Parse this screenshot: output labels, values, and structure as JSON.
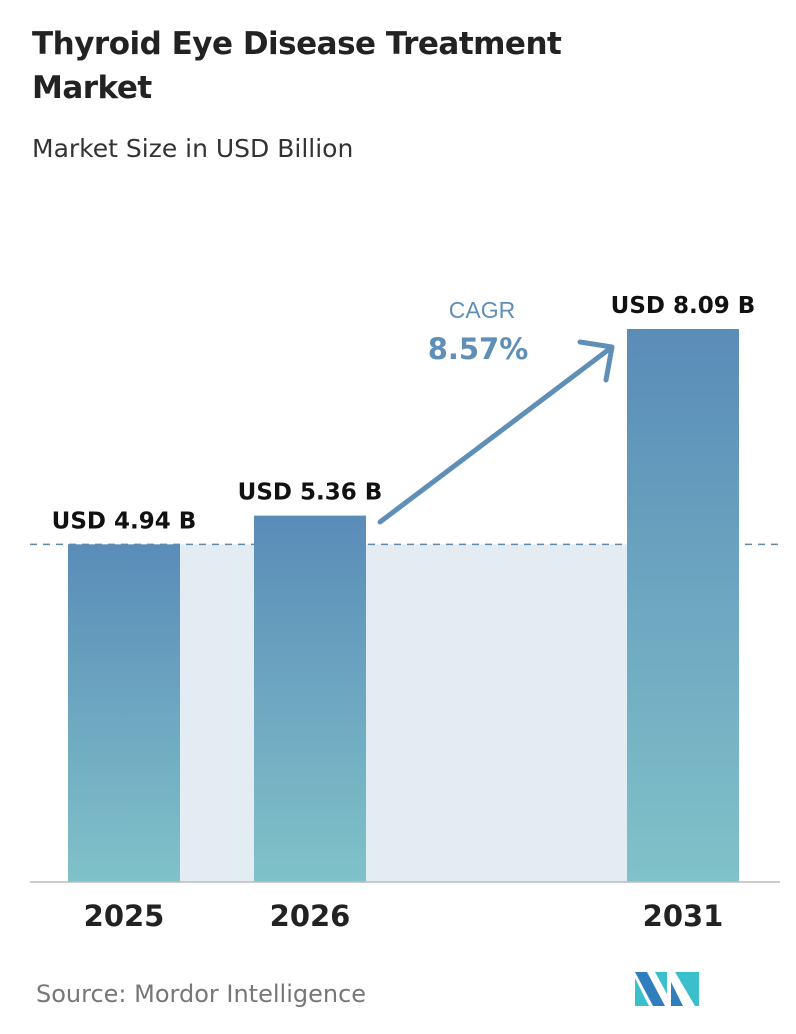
{
  "title": "Thyroid Eye Disease Treatment Market",
  "subtitle": "Market Size in USD Billion",
  "source": "Source:  Mordor Intelligence",
  "logo_text": "Mordor Intelligence",
  "colors": {
    "bar_top": "#5a8cb8",
    "bar_bottom": "#80c2c9",
    "band": "#e4ecf3",
    "cagr": "#5f8fb7",
    "dash": "#5c8aa8"
  },
  "chart_data": {
    "type": "bar",
    "categories": [
      "2025",
      "2026",
      "2031"
    ],
    "values": [
      4.94,
      5.36,
      8.09
    ],
    "data_labels": [
      "USD 4.94 B",
      "USD 5.36 B",
      "USD 8.09 B"
    ],
    "ylim": [
      0,
      8.09
    ],
    "grid": false,
    "annotation": {
      "label": "CAGR",
      "value": "8.57%"
    },
    "reference_line": 4.94
  }
}
